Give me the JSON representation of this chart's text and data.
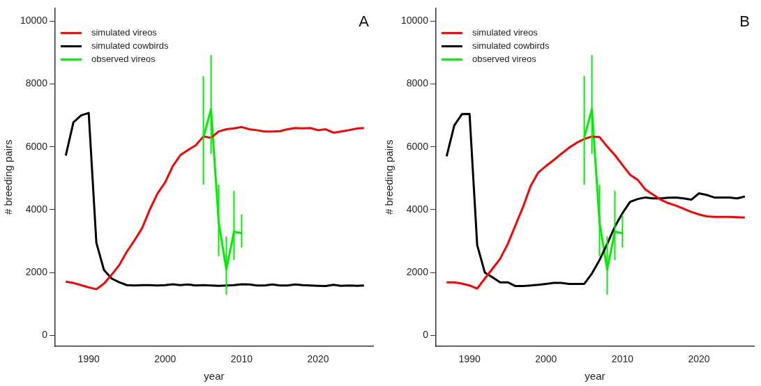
{
  "chart_data": [
    {
      "type": "line",
      "xlabel": "year",
      "ylabel": "# breeding pairs",
      "xlim": [
        1985.6,
        2027.2
      ],
      "ylim": [
        -350,
        10420
      ],
      "xticks": [
        1990,
        2000,
        2010,
        2020
      ],
      "yticks": [
        0,
        2000,
        4000,
        6000,
        8000,
        10000
      ],
      "grid": false,
      "legend": "top left",
      "annotations": [
        "A"
      ],
      "series": [
        {
          "name": "simulated vireos",
          "color": "#ff0000",
          "x": [
            1987,
            1988,
            1989,
            1990,
            1991,
            1992,
            1993,
            1994,
            1995,
            1996,
            1997,
            1998,
            1999,
            2000,
            2001,
            2002,
            2003,
            2004,
            2005,
            2006,
            2007,
            2008,
            2009,
            2010,
            2011,
            2012,
            2013,
            2014,
            2015,
            2016,
            2017,
            2018,
            2019,
            2020,
            2021,
            2022,
            2023,
            2024,
            2025,
            2026
          ],
          "values": [
            1710,
            1670,
            1600,
            1530,
            1470,
            1650,
            1930,
            2240,
            2670,
            3030,
            3420,
            4010,
            4520,
            4870,
            5390,
            5740,
            5900,
            6050,
            6330,
            6290,
            6490,
            6560,
            6590,
            6630,
            6560,
            6530,
            6490,
            6490,
            6500,
            6560,
            6600,
            6590,
            6600,
            6530,
            6560,
            6450,
            6490,
            6530,
            6580,
            6600
          ]
        },
        {
          "name": "simulated cowbirds",
          "color": "#000000",
          "x": [
            1987,
            1988,
            1989,
            1990,
            1991,
            1992,
            1993,
            1994,
            1995,
            1996,
            1997,
            1998,
            1999,
            2000,
            2001,
            2002,
            2003,
            2004,
            2005,
            2006,
            2007,
            2008,
            2009,
            2010,
            2011,
            2012,
            2013,
            2014,
            2015,
            2016,
            2017,
            2018,
            2019,
            2020,
            2021,
            2022,
            2023,
            2024,
            2025,
            2026
          ],
          "values": [
            5720,
            6780,
            7000,
            7080,
            2950,
            2080,
            1810,
            1690,
            1600,
            1590,
            1600,
            1600,
            1590,
            1600,
            1630,
            1600,
            1620,
            1590,
            1600,
            1590,
            1580,
            1590,
            1600,
            1630,
            1620,
            1590,
            1590,
            1620,
            1590,
            1590,
            1620,
            1600,
            1590,
            1580,
            1570,
            1610,
            1580,
            1590,
            1580,
            1590
          ]
        },
        {
          "name": "observed vireos",
          "color": "#00ee00",
          "x": [
            2005,
            2006,
            2007,
            2008,
            2009,
            2010
          ],
          "values": [
            6300,
            7200,
            3600,
            2100,
            3300,
            3250
          ],
          "errors": [
            [
              4800,
              8250
            ],
            [
              5780,
              8920
            ],
            [
              2520,
              4800
            ],
            [
              1300,
              3150
            ],
            [
              2400,
              4600
            ],
            [
              2800,
              3850
            ]
          ]
        }
      ]
    },
    {
      "type": "line",
      "xlabel": "year",
      "ylabel": "# breeding pairs",
      "xlim": [
        1985.6,
        2027.2
      ],
      "ylim": [
        -350,
        10420
      ],
      "xticks": [
        1990,
        2000,
        2010,
        2020
      ],
      "yticks": [
        0,
        2000,
        4000,
        6000,
        8000,
        10000
      ],
      "grid": false,
      "legend": "top left",
      "annotations": [
        "B"
      ],
      "series": [
        {
          "name": "simulated vireos",
          "color": "#ff0000",
          "x": [
            1987,
            1988,
            1989,
            1990,
            1991,
            1992,
            1993,
            1994,
            1995,
            1996,
            1997,
            1998,
            1999,
            2000,
            2001,
            2002,
            2003,
            2004,
            2005,
            2006,
            2007,
            2008,
            2009,
            2010,
            2011,
            2012,
            2013,
            2014,
            2015,
            2016,
            2017,
            2018,
            2019,
            2020,
            2021,
            2022,
            2023,
            2024,
            2025,
            2026
          ],
          "values": [
            1690,
            1690,
            1650,
            1590,
            1490,
            1810,
            2120,
            2440,
            2910,
            3500,
            4090,
            4760,
            5190,
            5390,
            5580,
            5780,
            5970,
            6130,
            6250,
            6330,
            6310,
            6010,
            5740,
            5420,
            5110,
            4950,
            4640,
            4480,
            4320,
            4210,
            4130,
            4030,
            3930,
            3850,
            3790,
            3770,
            3770,
            3770,
            3760,
            3750
          ]
        },
        {
          "name": "simulated cowbirds",
          "color": "#000000",
          "x": [
            1987,
            1988,
            1989,
            1990,
            1991,
            1992,
            1993,
            1994,
            1995,
            1996,
            1997,
            1998,
            1999,
            2000,
            2001,
            2002,
            2003,
            2004,
            2005,
            2006,
            2007,
            2008,
            2009,
            2010,
            2011,
            2012,
            2013,
            2014,
            2015,
            2016,
            2017,
            2018,
            2019,
            2020,
            2021,
            2022,
            2023,
            2024,
            2025,
            2026
          ],
          "values": [
            5700,
            6680,
            7040,
            7050,
            2870,
            2000,
            1850,
            1690,
            1690,
            1570,
            1570,
            1590,
            1610,
            1640,
            1670,
            1670,
            1640,
            1640,
            1640,
            1970,
            2400,
            2910,
            3460,
            3890,
            4250,
            4340,
            4390,
            4360,
            4360,
            4380,
            4390,
            4360,
            4320,
            4520,
            4470,
            4390,
            4390,
            4390,
            4360,
            4420
          ]
        },
        {
          "name": "observed vireos",
          "color": "#00ee00",
          "x": [
            2005,
            2006,
            2007,
            2008,
            2009,
            2010
          ],
          "values": [
            6300,
            7200,
            3600,
            2100,
            3300,
            3250
          ],
          "errors": [
            [
              4800,
              8250
            ],
            [
              5780,
              8920
            ],
            [
              2520,
              4800
            ],
            [
              1300,
              3150
            ],
            [
              2400,
              4600
            ],
            [
              2800,
              3850
            ]
          ]
        }
      ]
    }
  ]
}
